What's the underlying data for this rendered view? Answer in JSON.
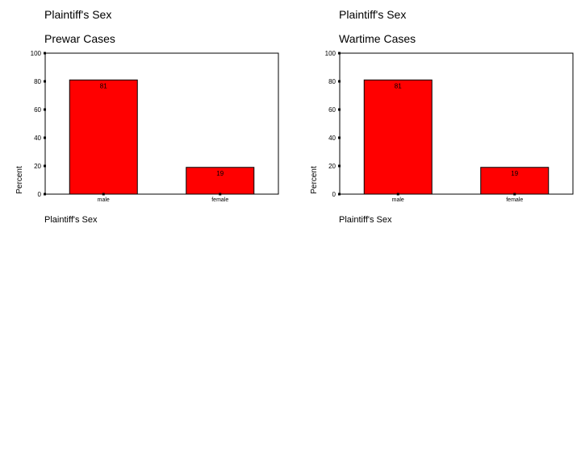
{
  "chart_data": [
    {
      "type": "bar",
      "title": "Plaintiff's Sex",
      "subtitle": "Prewar Cases",
      "xlabel": "Plaintiff's Sex",
      "ylabel": "Percent",
      "categories": [
        "male",
        "female"
      ],
      "values": [
        81,
        19
      ],
      "data_labels": [
        "81",
        "19"
      ],
      "yticks": [
        "0",
        "20",
        "40",
        "60",
        "80",
        "100"
      ],
      "ylim": [
        0,
        100
      ],
      "bar_color": "#ff0000",
      "grid": false,
      "legend": "none"
    },
    {
      "type": "bar",
      "title": "Plaintiff's Sex",
      "subtitle": "Wartime Cases",
      "xlabel": "Plaintiff's Sex",
      "ylabel": "Percent",
      "categories": [
        "male",
        "female"
      ],
      "values": [
        81,
        19
      ],
      "data_labels": [
        "81",
        "19"
      ],
      "yticks": [
        "0",
        "20",
        "40",
        "60",
        "80",
        "100"
      ],
      "ylim": [
        0,
        100
      ],
      "bar_color": "#ff0000",
      "grid": false,
      "legend": "none"
    }
  ]
}
